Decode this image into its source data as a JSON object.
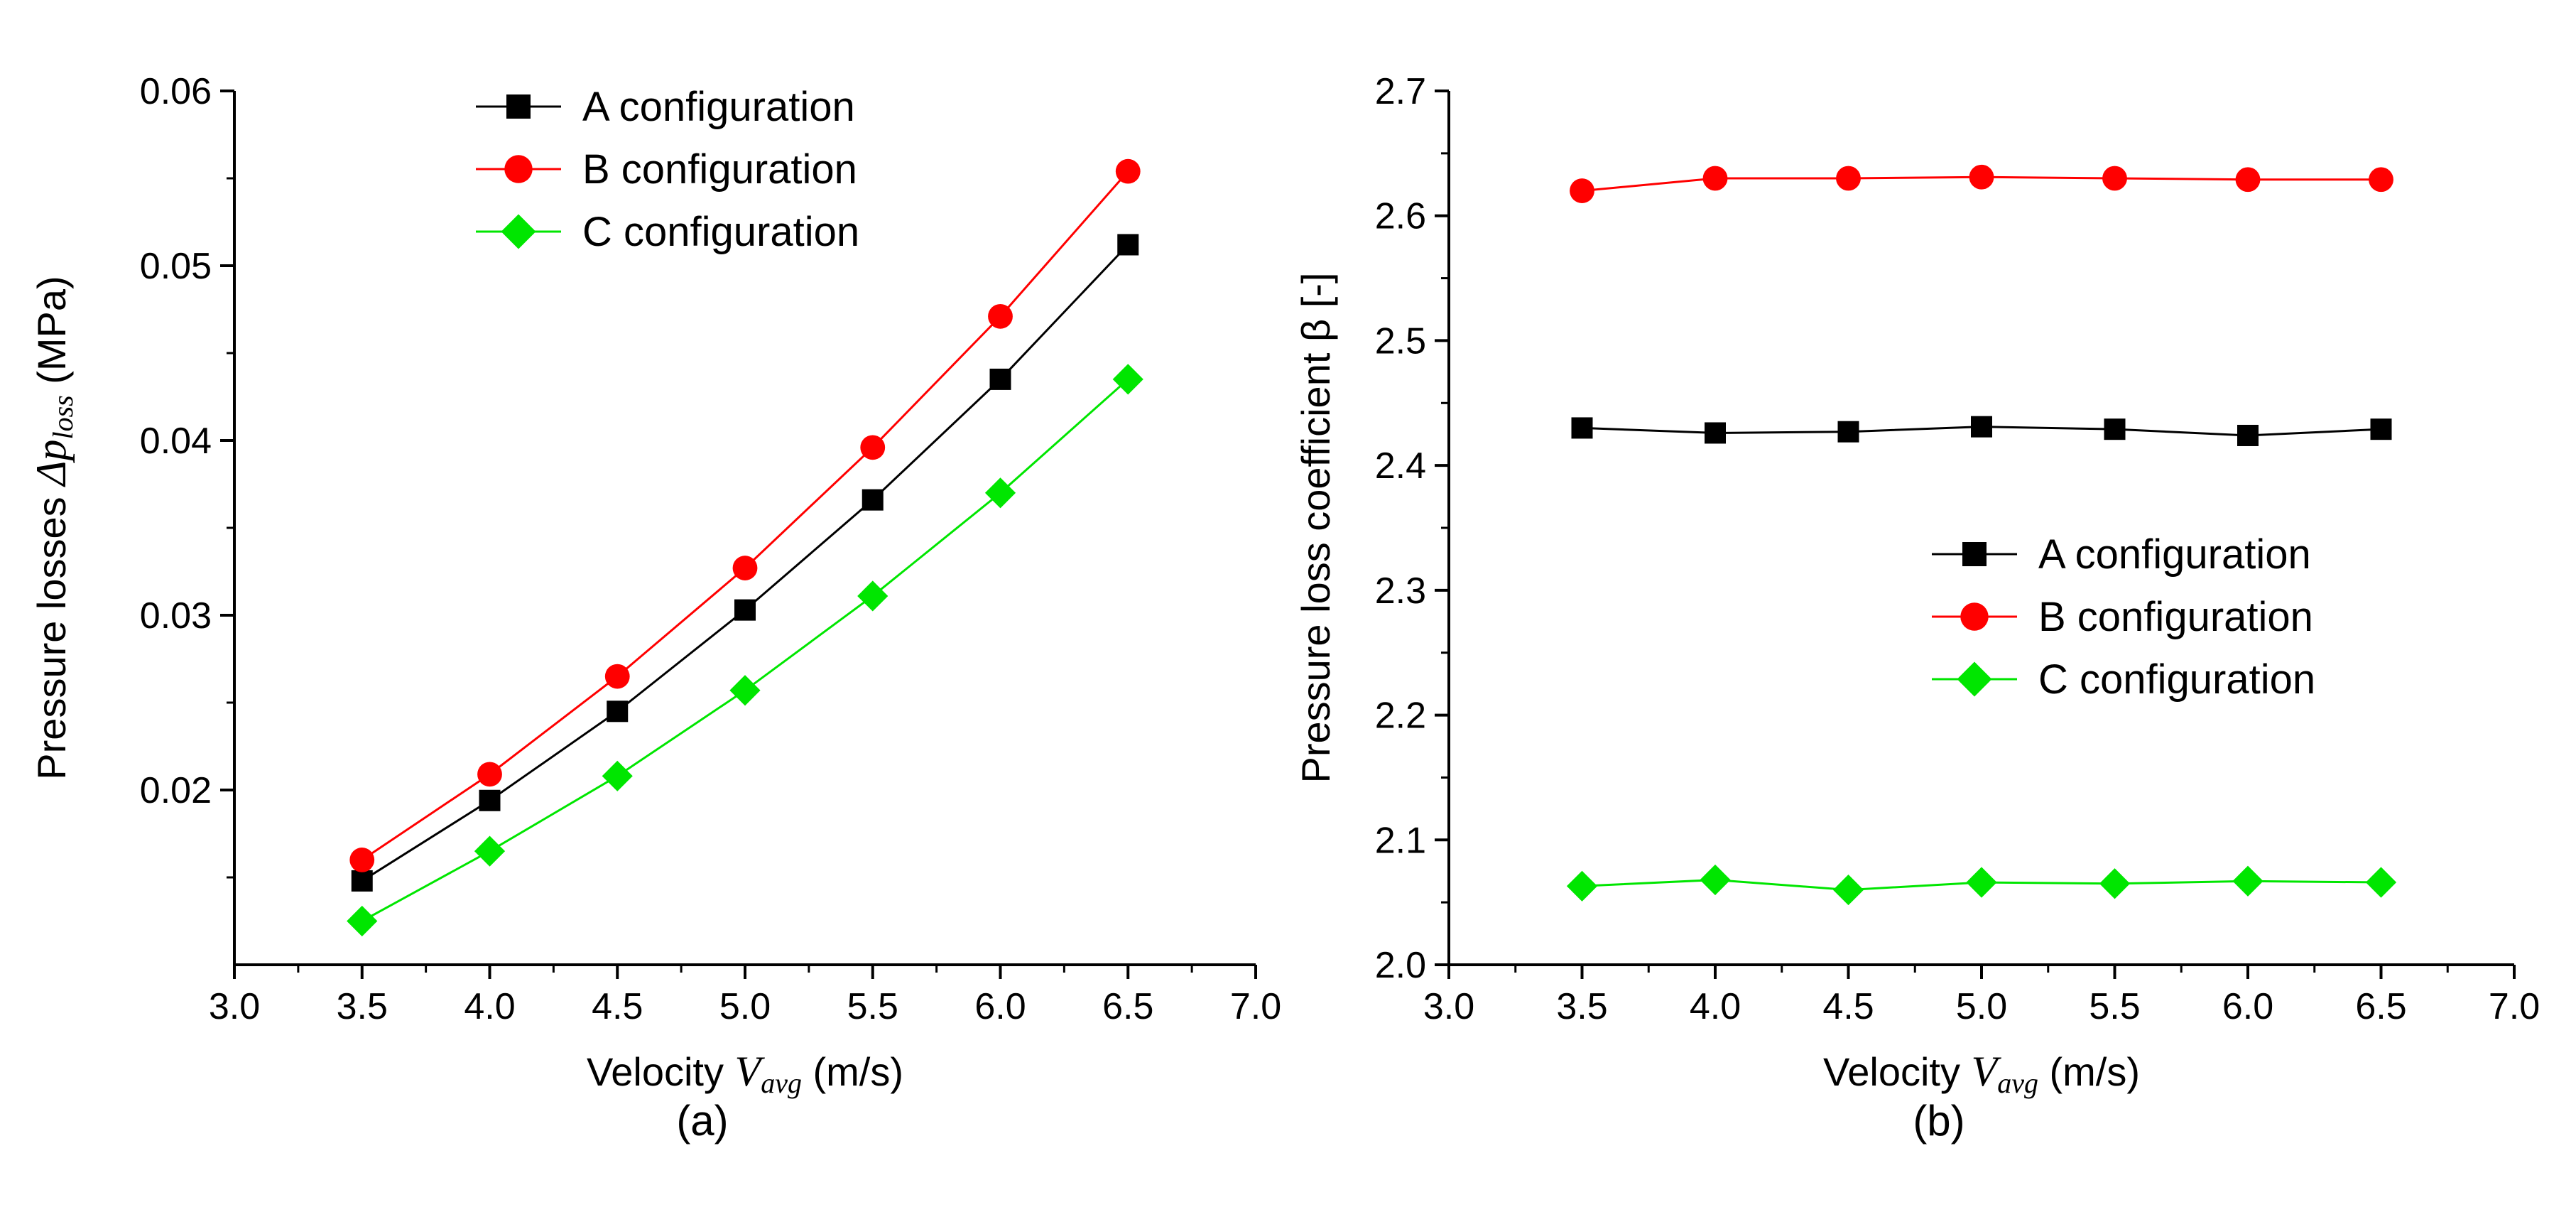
{
  "chart_data": [
    {
      "type": "line",
      "panel_label": "(a)",
      "xlabel_prefix": "Velocity ",
      "xlabel_var": "V",
      "xlabel_sub": "avg",
      "xlabel_suffix": " (m/s)",
      "ylabel_prefix": "Pressure losses ",
      "ylabel_var": "Δp",
      "ylabel_sub": "loss",
      "ylabel_suffix": " (MPa)",
      "xlim": [
        3.0,
        7.0
      ],
      "ylim": [
        0.01,
        0.06
      ],
      "xticks": [
        "3.0",
        "3.5",
        "4.0",
        "4.5",
        "5.0",
        "5.5",
        "6.0",
        "6.5",
        "7.0"
      ],
      "yticks": [
        "0.02",
        "0.03",
        "0.04",
        "0.05",
        "0.06"
      ],
      "ytick_values": [
        0.02,
        0.03,
        0.04,
        0.05,
        0.06
      ],
      "legend_position": "top-left",
      "x": [
        3.5,
        4.0,
        4.5,
        5.0,
        5.5,
        6.0,
        6.5
      ],
      "series": [
        {
          "name": "A configuration",
          "color": "#000000",
          "marker": "square",
          "values": [
            0.0148,
            0.0194,
            0.0245,
            0.0303,
            0.0366,
            0.0435,
            0.0512
          ]
        },
        {
          "name": "B configuration",
          "color": "#ff0000",
          "marker": "circle",
          "values": [
            0.016,
            0.0209,
            0.0265,
            0.0327,
            0.0396,
            0.0471,
            0.0554
          ]
        },
        {
          "name": "C configuration",
          "color": "#00e600",
          "marker": "diamond",
          "values": [
            0.0125,
            0.0165,
            0.0208,
            0.0257,
            0.0311,
            0.037,
            0.0435
          ]
        }
      ]
    },
    {
      "type": "line",
      "panel_label": "(b)",
      "xlabel_prefix": "Velocity ",
      "xlabel_var": "V",
      "xlabel_sub": "avg",
      "xlabel_suffix": " (m/s)",
      "ylabel_prefix": "Pressure loss coefficient β [-]",
      "ylabel_var": "",
      "ylabel_sub": "",
      "ylabel_suffix": "",
      "xlim": [
        3.0,
        7.0
      ],
      "ylim": [
        2.0,
        2.7
      ],
      "xticks": [
        "3.0",
        "3.5",
        "4.0",
        "4.5",
        "5.0",
        "5.5",
        "6.0",
        "6.5",
        "7.0"
      ],
      "yticks": [
        "2.0",
        "2.1",
        "2.2",
        "2.3",
        "2.4",
        "2.5",
        "2.6",
        "2.7"
      ],
      "ytick_values": [
        2.0,
        2.1,
        2.2,
        2.3,
        2.4,
        2.5,
        2.6,
        2.7
      ],
      "legend_position": "center-right",
      "x": [
        3.5,
        4.0,
        4.5,
        5.0,
        5.5,
        6.0,
        6.5
      ],
      "series": [
        {
          "name": "A configuration",
          "color": "#000000",
          "marker": "square",
          "values": [
            2.43,
            2.426,
            2.427,
            2.431,
            2.429,
            2.424,
            2.429
          ]
        },
        {
          "name": "B configuration",
          "color": "#ff0000",
          "marker": "circle",
          "values": [
            2.62,
            2.63,
            2.63,
            2.631,
            2.63,
            2.629,
            2.629
          ]
        },
        {
          "name": "C configuration",
          "color": "#00e600",
          "marker": "diamond",
          "values": [
            2.063,
            2.068,
            2.06,
            2.066,
            2.065,
            2.067,
            2.066
          ]
        }
      ]
    }
  ]
}
